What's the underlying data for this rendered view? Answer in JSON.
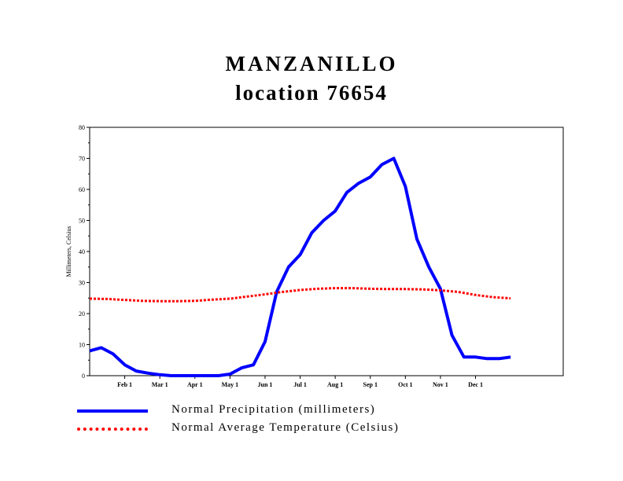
{
  "title_line1": "MANZANILLO",
  "title_line2": "location 76654",
  "chart_data": {
    "type": "line",
    "ylabel": "Millimeters, Celsius",
    "ylim": [
      0,
      80
    ],
    "yticks": [
      0,
      10,
      20,
      30,
      40,
      50,
      60,
      70,
      80
    ],
    "xlim": [
      0,
      13.5
    ],
    "xticks": [
      {
        "label": "Feb 1",
        "x": 1
      },
      {
        "label": "Mar 1",
        "x": 2
      },
      {
        "label": "Apr 1",
        "x": 3
      },
      {
        "label": "May 1",
        "x": 4
      },
      {
        "label": "Jun 1",
        "x": 5
      },
      {
        "label": "Jul 1",
        "x": 6
      },
      {
        "label": "Aug 1",
        "x": 7
      },
      {
        "label": "Sep 1",
        "x": 8
      },
      {
        "label": "Oct 1",
        "x": 9
      },
      {
        "label": "Nov 1",
        "x": 10
      },
      {
        "label": "Dec 1",
        "x": 11
      }
    ],
    "series": [
      {
        "name": "Normal Precipitation (millimeters)",
        "color": "#0000ff",
        "style": "solid",
        "points": [
          [
            0,
            8
          ],
          [
            0.33,
            9
          ],
          [
            0.67,
            7
          ],
          [
            1,
            3.5
          ],
          [
            1.33,
            1.5
          ],
          [
            1.67,
            0.8
          ],
          [
            2,
            0.3
          ],
          [
            2.33,
            0
          ],
          [
            2.67,
            0
          ],
          [
            3,
            0
          ],
          [
            3.33,
            0
          ],
          [
            3.67,
            0
          ],
          [
            4,
            0.5
          ],
          [
            4.33,
            2.5
          ],
          [
            4.67,
            3.5
          ],
          [
            5,
            11
          ],
          [
            5.33,
            27
          ],
          [
            5.67,
            35
          ],
          [
            6,
            39
          ],
          [
            6.33,
            46
          ],
          [
            6.67,
            50
          ],
          [
            7,
            53
          ],
          [
            7.33,
            59
          ],
          [
            7.67,
            62
          ],
          [
            8,
            64
          ],
          [
            8.33,
            68
          ],
          [
            8.67,
            70
          ],
          [
            9,
            61
          ],
          [
            9.33,
            44
          ],
          [
            9.67,
            35
          ],
          [
            10,
            28
          ],
          [
            10.33,
            13
          ],
          [
            10.67,
            6
          ],
          [
            11,
            6
          ],
          [
            11.33,
            5.5
          ],
          [
            11.67,
            5.5
          ],
          [
            12,
            6
          ]
        ]
      },
      {
        "name": "Normal Average Temperature (Celsius)",
        "color": "#ff0000",
        "style": "dotted",
        "points": [
          [
            0,
            24.8
          ],
          [
            0.5,
            24.7
          ],
          [
            1,
            24.4
          ],
          [
            1.5,
            24.1
          ],
          [
            2,
            24
          ],
          [
            2.5,
            24
          ],
          [
            3,
            24.1
          ],
          [
            3.5,
            24.5
          ],
          [
            4,
            24.8
          ],
          [
            4.5,
            25.5
          ],
          [
            5,
            26.2
          ],
          [
            5.5,
            27
          ],
          [
            6,
            27.6
          ],
          [
            6.5,
            28
          ],
          [
            7,
            28.2
          ],
          [
            7.5,
            28.2
          ],
          [
            8,
            28
          ],
          [
            8.5,
            27.9
          ],
          [
            9,
            27.9
          ],
          [
            9.5,
            27.8
          ],
          [
            10,
            27.5
          ],
          [
            10.5,
            27
          ],
          [
            11,
            26
          ],
          [
            11.5,
            25.3
          ],
          [
            12,
            24.9
          ]
        ]
      }
    ]
  },
  "legend": {
    "precip_label": "Normal Precipitation (millimeters)",
    "temp_label": "Normal Average Temperature (Celsius)"
  }
}
